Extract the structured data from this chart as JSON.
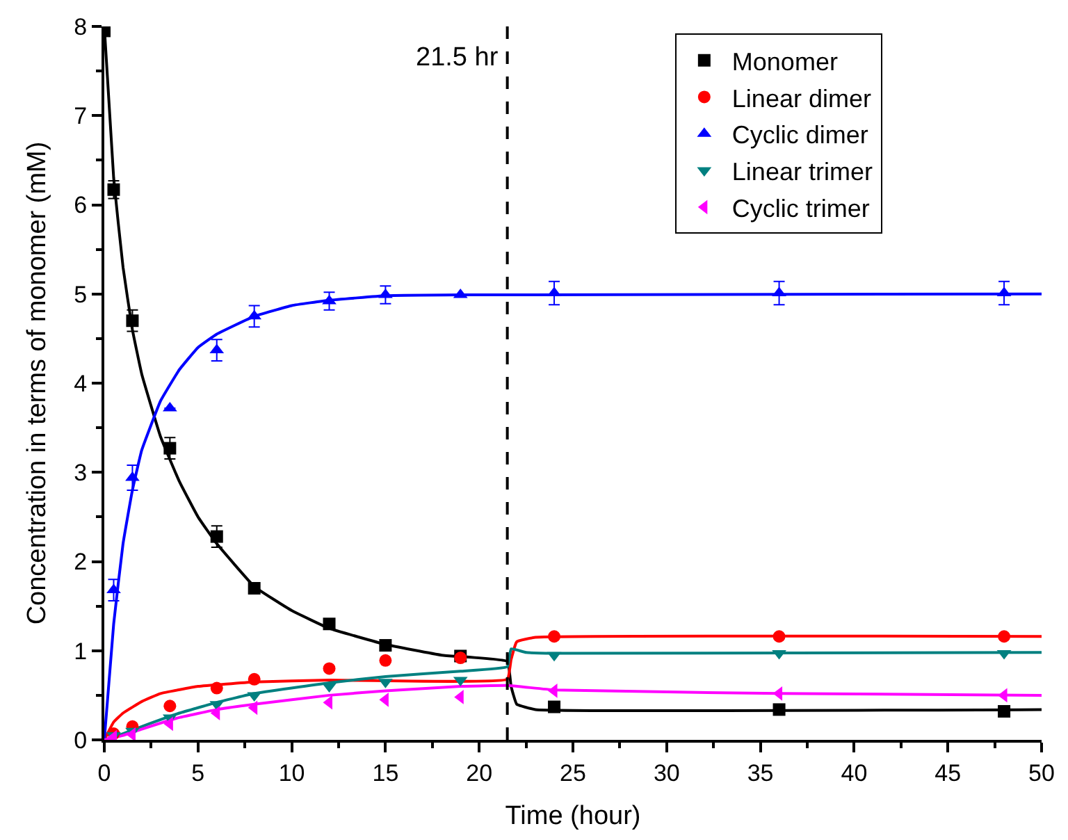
{
  "chart_data": {
    "type": "scatter",
    "xlabel": "Time (hour)",
    "ylabel": "Concentration in terms of monomer (mM)",
    "xlim": [
      0,
      50
    ],
    "ylim": [
      0,
      8
    ],
    "xticks": [
      0,
      5,
      10,
      15,
      20,
      25,
      30,
      35,
      40,
      45,
      50
    ],
    "yticks": [
      0,
      1,
      2,
      3,
      4,
      5,
      6,
      7,
      8
    ],
    "legend": "top right",
    "ref_lines": [
      {
        "axis": "x",
        "value": 21.5,
        "label": "21.5 hr",
        "color": "#000000",
        "line_style": "dashed"
      }
    ],
    "series": [
      {
        "name": "Monomer",
        "color": "#000000",
        "marker": "square",
        "x": [
          0,
          0.5,
          1.5,
          3.5,
          6,
          8,
          12,
          15,
          19,
          24,
          36,
          48
        ],
        "values": [
          7.95,
          6.17,
          4.7,
          3.27,
          2.28,
          1.7,
          1.3,
          1.06,
          0.94,
          0.37,
          0.34,
          0.32
        ],
        "errors": [
          null,
          0.1,
          0.12,
          0.12,
          0.12,
          null,
          null,
          null,
          null,
          null,
          null,
          null
        ]
      },
      {
        "name": "Linear dimer",
        "color": "#ff0000",
        "marker": "circle",
        "x": [
          0.5,
          1.5,
          3.5,
          6,
          8,
          12,
          15,
          19,
          24,
          36,
          48
        ],
        "values": [
          0.07,
          0.15,
          0.38,
          0.58,
          0.68,
          0.8,
          0.89,
          0.92,
          1.16,
          1.16,
          1.16
        ]
      },
      {
        "name": "Cyclic dimer",
        "color": "#0000ff",
        "marker": "triangle-up",
        "x": [
          0.5,
          1.5,
          3.5,
          6,
          8,
          12,
          15,
          19,
          24,
          36,
          48
        ],
        "values": [
          1.68,
          2.94,
          3.72,
          4.37,
          4.75,
          4.92,
          4.99,
          4.99,
          5.01,
          5.01,
          5.01
        ],
        "errors": [
          0.12,
          0.14,
          null,
          0.12,
          0.12,
          0.1,
          0.1,
          null,
          0.13,
          0.13,
          0.13
        ]
      },
      {
        "name": "Linear trimer",
        "color": "#008080",
        "marker": "triangle-down",
        "x": [
          0.5,
          1.5,
          3.5,
          6,
          8,
          12,
          15,
          19,
          24,
          36,
          48
        ],
        "values": [
          0.05,
          0.1,
          0.25,
          0.4,
          0.5,
          0.6,
          0.65,
          0.67,
          0.95,
          0.97,
          0.97
        ]
      },
      {
        "name": "Cyclic trimer",
        "color": "#ff00ff",
        "marker": "triangle-left",
        "x": [
          0.5,
          1.5,
          3.5,
          6,
          8,
          12,
          15,
          19,
          24,
          36,
          48
        ],
        "values": [
          0.03,
          0.06,
          0.18,
          0.3,
          0.36,
          0.42,
          0.45,
          0.48,
          0.55,
          0.52,
          0.5
        ]
      },
      {
        "type": "line",
        "color": "#000000",
        "x": [
          0,
          0.5,
          1,
          1.5,
          2,
          3,
          4,
          5,
          6,
          8,
          10,
          12,
          15,
          18,
          21.5,
          21.7,
          22,
          23,
          50
        ],
        "values": [
          8,
          6.3,
          5.3,
          4.6,
          4.1,
          3.4,
          2.9,
          2.5,
          2.2,
          1.72,
          1.45,
          1.25,
          1.07,
          0.95,
          0.88,
          0.6,
          0.4,
          0.34,
          0.34
        ]
      },
      {
        "type": "line",
        "color": "#ff0000",
        "x": [
          0,
          0.5,
          1,
          2,
          3,
          5,
          8,
          12,
          21.5,
          21.7,
          22,
          23,
          50
        ],
        "values": [
          0,
          0.2,
          0.3,
          0.43,
          0.52,
          0.6,
          0.65,
          0.67,
          0.68,
          0.9,
          1.1,
          1.15,
          1.16
        ]
      },
      {
        "type": "line",
        "color": "#0000ff",
        "x": [
          0,
          0.5,
          1,
          1.5,
          2,
          3,
          4,
          5,
          6,
          8,
          10,
          12,
          15,
          19,
          50
        ],
        "values": [
          0,
          1.3,
          2.2,
          2.8,
          3.25,
          3.8,
          4.15,
          4.4,
          4.55,
          4.75,
          4.87,
          4.93,
          4.98,
          4.99,
          5.0
        ]
      },
      {
        "type": "line",
        "color": "#008080",
        "x": [
          0,
          1,
          2,
          4,
          6,
          8,
          12,
          15,
          19,
          21.5,
          21.7,
          22.5,
          24,
          50
        ],
        "values": [
          0,
          0.07,
          0.15,
          0.3,
          0.42,
          0.52,
          0.64,
          0.71,
          0.77,
          0.82,
          1.02,
          0.98,
          0.97,
          0.98
        ]
      },
      {
        "type": "line",
        "color": "#ff00ff",
        "x": [
          0,
          1,
          2,
          4,
          6,
          8,
          12,
          15,
          19,
          21.5,
          24,
          36,
          50
        ],
        "values": [
          0,
          0.05,
          0.12,
          0.25,
          0.34,
          0.4,
          0.5,
          0.55,
          0.6,
          0.61,
          0.56,
          0.52,
          0.5
        ]
      }
    ]
  }
}
